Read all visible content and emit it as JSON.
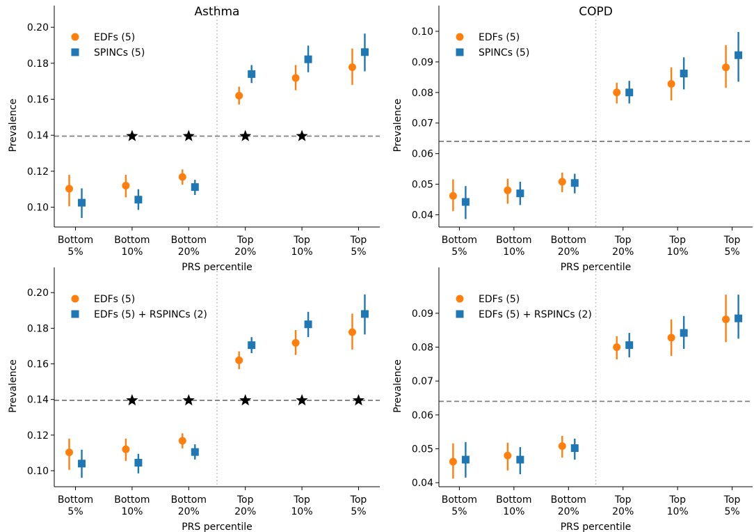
{
  "colors": {
    "series_a": "#ff7f0e",
    "series_b": "#1f77b4",
    "reference_line": "#808080",
    "divider_line": "#c8c8c8",
    "star": "#000000"
  },
  "chart_data": [
    {
      "type": "scatter",
      "title": "Asthma",
      "xlabel": "PRS percentile",
      "ylabel": "Prevalence",
      "categories": [
        "Bottom\n5%",
        "Bottom\n10%",
        "Bottom\n20%",
        "Top\n20%",
        "Top\n10%",
        "Top\n5%"
      ],
      "ylim": [
        0.089,
        0.202
      ],
      "yticks": [
        0.1,
        0.12,
        0.14,
        0.16,
        0.18,
        0.2
      ],
      "ytick_labels": [
        "0.10",
        "0.12",
        "0.14",
        "0.16",
        "0.18",
        "0.20"
      ],
      "reference_value": 0.1395,
      "legend_position": "top-left",
      "series": [
        {
          "name": "EDFs (5)",
          "marker": "circle",
          "values": [
            0.1103,
            0.112,
            0.1168,
            0.162,
            0.1718,
            0.1778
          ],
          "lower": [
            0.1005,
            0.1055,
            0.1125,
            0.157,
            0.165,
            0.168
          ],
          "upper": [
            0.118,
            0.118,
            0.121,
            0.167,
            0.179,
            0.1882
          ]
        },
        {
          "name": "SPINCs (5)",
          "marker": "square",
          "values": [
            0.1025,
            0.1042,
            0.1112,
            0.174,
            0.1822,
            0.1862
          ],
          "lower": [
            0.094,
            0.0985,
            0.1068,
            0.169,
            0.175,
            0.1755
          ],
          "upper": [
            0.1105,
            0.11,
            0.1152,
            0.179,
            0.1898,
            0.1965
          ]
        }
      ],
      "significance_stars": [
        false,
        true,
        true,
        true,
        true,
        false
      ]
    },
    {
      "type": "scatter",
      "title": "COPD",
      "xlabel": "PRS percentile",
      "ylabel": "Prevalence",
      "categories": [
        "Bottom\n5%",
        "Bottom\n10%",
        "Bottom\n20%",
        "Top\n20%",
        "Top\n10%",
        "Top\n5%"
      ],
      "ylim": [
        0.036,
        0.1025
      ],
      "yticks": [
        0.04,
        0.05,
        0.06,
        0.07,
        0.08,
        0.09,
        0.1
      ],
      "ytick_labels": [
        "0.04",
        "0.05",
        "0.06",
        "0.07",
        "0.08",
        "0.09",
        "0.10"
      ],
      "reference_value": 0.064,
      "legend_position": "top-left",
      "series": [
        {
          "name": "EDFs (5)",
          "marker": "circle",
          "values": [
            0.0462,
            0.048,
            0.0508,
            0.08,
            0.0828,
            0.0882
          ],
          "lower": [
            0.0412,
            0.0436,
            0.0474,
            0.0764,
            0.0774,
            0.0815
          ],
          "upper": [
            0.0516,
            0.0518,
            0.0538,
            0.0832,
            0.0882,
            0.0955
          ]
        },
        {
          "name": "SPINCs (5)",
          "marker": "square",
          "values": [
            0.0442,
            0.047,
            0.0504,
            0.08,
            0.0862,
            0.0922
          ],
          "lower": [
            0.0386,
            0.0432,
            0.047,
            0.0764,
            0.081,
            0.0835
          ],
          "upper": [
            0.0494,
            0.0508,
            0.0534,
            0.0838,
            0.0915,
            0.0998
          ]
        }
      ],
      "significance_stars": [
        false,
        false,
        false,
        false,
        false,
        false
      ]
    },
    {
      "type": "scatter",
      "title": "",
      "xlabel": "PRS percentile",
      "ylabel": "Prevalence",
      "categories": [
        "Bottom\n5%",
        "Bottom\n10%",
        "Bottom\n20%",
        "Top\n20%",
        "Top\n10%",
        "Top\n5%"
      ],
      "ylim": [
        0.091,
        0.204
      ],
      "yticks": [
        0.1,
        0.12,
        0.14,
        0.16,
        0.18,
        0.2
      ],
      "ytick_labels": [
        "0.10",
        "0.12",
        "0.14",
        "0.16",
        "0.18",
        "0.20"
      ],
      "reference_value": 0.1395,
      "legend_position": "top-left",
      "series": [
        {
          "name": "EDFs (5)",
          "marker": "circle",
          "values": [
            0.1103,
            0.112,
            0.1168,
            0.162,
            0.1718,
            0.1778
          ],
          "lower": [
            0.1005,
            0.1055,
            0.1125,
            0.157,
            0.165,
            0.168
          ],
          "upper": [
            0.118,
            0.118,
            0.121,
            0.167,
            0.179,
            0.1882
          ]
        },
        {
          "name": "EDFs (5) + RSPINCs (2)",
          "marker": "square",
          "values": [
            0.104,
            0.1045,
            0.1105,
            0.1705,
            0.1822,
            0.188
          ],
          "lower": [
            0.096,
            0.0985,
            0.1063,
            0.166,
            0.175,
            0.1765
          ],
          "upper": [
            0.1118,
            0.1095,
            0.1148,
            0.175,
            0.1892,
            0.199
          ]
        }
      ],
      "significance_stars": [
        false,
        true,
        true,
        true,
        true,
        true
      ]
    },
    {
      "type": "scatter",
      "title": "",
      "xlabel": "PRS percentile",
      "ylabel": "Prevalence",
      "categories": [
        "Bottom\n5%",
        "Bottom\n10%",
        "Bottom\n20%",
        "Top\n20%",
        "Top\n10%",
        "Top\n5%"
      ],
      "ylim": [
        0.0388,
        0.0982
      ],
      "yticks": [
        0.04,
        0.05,
        0.06,
        0.07,
        0.08,
        0.09
      ],
      "ytick_labels": [
        "0.04",
        "0.05",
        "0.06",
        "0.07",
        "0.08",
        "0.09"
      ],
      "reference_value": 0.064,
      "legend_position": "top-left",
      "series": [
        {
          "name": "EDFs (5)",
          "marker": "circle",
          "values": [
            0.0462,
            0.048,
            0.0508,
            0.08,
            0.0828,
            0.0882
          ],
          "lower": [
            0.0412,
            0.0436,
            0.0474,
            0.0764,
            0.0774,
            0.0815
          ],
          "upper": [
            0.0516,
            0.0518,
            0.0538,
            0.0832,
            0.0882,
            0.0955
          ]
        },
        {
          "name": "EDFs (5) + RSPINCs (2)",
          "marker": "square",
          "values": [
            0.0468,
            0.0468,
            0.0502,
            0.0806,
            0.0842,
            0.0885
          ],
          "lower": [
            0.0415,
            0.0425,
            0.0468,
            0.077,
            0.0795,
            0.0825
          ],
          "upper": [
            0.052,
            0.0505,
            0.053,
            0.0842,
            0.0892,
            0.0955
          ]
        }
      ],
      "significance_stars": [
        false,
        false,
        false,
        false,
        false,
        false
      ]
    }
  ]
}
